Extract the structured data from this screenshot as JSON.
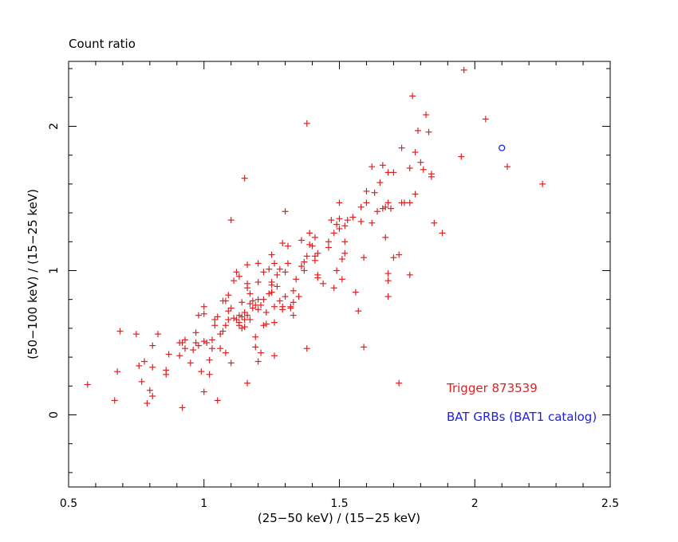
{
  "chart_data": {
    "type": "scatter",
    "title": "Count ratio",
    "xlabel": "(25−50 keV) / (15−25 keV)",
    "ylabel": "(50−100 keV) / (15−25 keV)",
    "xlim": [
      0.5,
      2.5
    ],
    "ylim": [
      -0.5,
      2.45
    ],
    "x_ticks": [
      0.5,
      1,
      1.5,
      2,
      2.5
    ],
    "x_tick_labels": [
      "0.5",
      "1",
      "1.5",
      "2",
      "2.5"
    ],
    "y_ticks": [
      0,
      1,
      2
    ],
    "y_tick_labels": [
      "0",
      "1",
      "2"
    ],
    "grid": false,
    "legend_position": "bottom-right",
    "series": [
      {
        "name": "Trigger 873539",
        "marker": "plus",
        "color": "#e02020",
        "points": [
          [
            0.57,
            0.21
          ],
          [
            0.67,
            0.1
          ],
          [
            0.68,
            0.3
          ],
          [
            0.69,
            0.58
          ],
          [
            0.75,
            0.56
          ],
          [
            0.76,
            0.34
          ],
          [
            0.77,
            0.23
          ],
          [
            0.78,
            0.37
          ],
          [
            0.79,
            0.08
          ],
          [
            0.8,
            0.17
          ],
          [
            0.81,
            0.13
          ],
          [
            0.81,
            0.33
          ],
          [
            0.81,
            0.48
          ],
          [
            0.83,
            0.56
          ],
          [
            0.86,
            0.28
          ],
          [
            0.86,
            0.31
          ],
          [
            0.87,
            0.42
          ],
          [
            0.91,
            0.5
          ],
          [
            0.91,
            0.41
          ],
          [
            0.92,
            0.05
          ],
          [
            0.92,
            0.5
          ],
          [
            0.93,
            0.52
          ],
          [
            0.93,
            0.46
          ],
          [
            0.95,
            0.36
          ],
          [
            0.96,
            0.45
          ],
          [
            0.97,
            0.57
          ],
          [
            0.97,
            0.5
          ],
          [
            0.98,
            0.69
          ],
          [
            0.98,
            0.48
          ],
          [
            0.99,
            0.3
          ],
          [
            1.0,
            0.7
          ],
          [
            1.0,
            0.75
          ],
          [
            1.0,
            0.51
          ],
          [
            1.0,
            0.16
          ],
          [
            1.01,
            0.5
          ],
          [
            1.02,
            0.38
          ],
          [
            1.02,
            0.28
          ],
          [
            1.03,
            0.46
          ],
          [
            1.03,
            0.52
          ],
          [
            1.04,
            0.66
          ],
          [
            1.04,
            0.62
          ],
          [
            1.05,
            0.68
          ],
          [
            1.05,
            0.1
          ],
          [
            1.06,
            0.56
          ],
          [
            1.06,
            0.46
          ],
          [
            1.07,
            0.58
          ],
          [
            1.07,
            0.79
          ],
          [
            1.08,
            0.62
          ],
          [
            1.08,
            0.79
          ],
          [
            1.08,
            0.43
          ],
          [
            1.09,
            0.66
          ],
          [
            1.09,
            0.83
          ],
          [
            1.09,
            0.72
          ],
          [
            1.1,
            0.74
          ],
          [
            1.1,
            0.36
          ],
          [
            1.1,
            1.35
          ],
          [
            1.11,
            0.67
          ],
          [
            1.11,
            0.93
          ],
          [
            1.12,
            0.99
          ],
          [
            1.12,
            0.66
          ],
          [
            1.13,
            0.64
          ],
          [
            1.13,
            0.69
          ],
          [
            1.13,
            0.62
          ],
          [
            1.14,
            0.78
          ],
          [
            1.14,
            0.68
          ],
          [
            1.14,
            0.6
          ],
          [
            1.15,
            1.64
          ],
          [
            1.15,
            0.71
          ],
          [
            1.15,
            0.66
          ],
          [
            1.15,
            0.61
          ],
          [
            1.16,
            1.04
          ],
          [
            1.16,
            0.91
          ],
          [
            1.16,
            0.88
          ],
          [
            1.16,
            0.69
          ],
          [
            1.16,
            0.22
          ],
          [
            1.17,
            0.84
          ],
          [
            1.17,
            0.66
          ],
          [
            1.17,
            0.77
          ],
          [
            1.18,
            0.79
          ],
          [
            1.18,
            0.74
          ],
          [
            1.19,
            0.54
          ],
          [
            1.19,
            0.47
          ],
          [
            1.19,
            0.76
          ],
          [
            1.2,
            0.8
          ],
          [
            1.2,
            0.73
          ],
          [
            1.2,
            0.92
          ],
          [
            1.2,
            1.05
          ],
          [
            1.2,
            0.37
          ],
          [
            1.21,
            0.43
          ],
          [
            1.21,
            0.76
          ],
          [
            1.22,
            0.8
          ],
          [
            1.22,
            0.62
          ],
          [
            1.22,
            0.99
          ],
          [
            1.23,
            0.71
          ],
          [
            1.23,
            0.63
          ],
          [
            1.24,
            0.84
          ],
          [
            1.24,
            1.01
          ],
          [
            1.25,
            0.9
          ],
          [
            1.25,
            1.11
          ],
          [
            1.25,
            0.92
          ],
          [
            1.25,
            0.85
          ],
          [
            1.26,
            0.64
          ],
          [
            1.26,
            0.41
          ],
          [
            1.26,
            0.75
          ],
          [
            1.26,
            1.05
          ],
          [
            1.27,
            0.97
          ],
          [
            1.27,
            0.89
          ],
          [
            1.28,
            0.79
          ],
          [
            1.28,
            1.01
          ],
          [
            1.29,
            0.75
          ],
          [
            1.29,
            0.73
          ],
          [
            1.29,
            1.19
          ],
          [
            1.3,
            1.41
          ],
          [
            1.3,
            0.82
          ],
          [
            1.3,
            0.99
          ],
          [
            1.31,
            1.05
          ],
          [
            1.31,
            1.17
          ],
          [
            1.32,
            0.74
          ],
          [
            1.32,
            0.75
          ],
          [
            1.33,
            0.69
          ],
          [
            1.33,
            0.86
          ],
          [
            1.33,
            0.78
          ],
          [
            1.34,
            0.94
          ],
          [
            1.35,
            0.82
          ],
          [
            1.36,
            1.03
          ],
          [
            1.36,
            1.21
          ],
          [
            1.37,
            1.06
          ],
          [
            1.37,
            1.0
          ],
          [
            1.38,
            2.02
          ],
          [
            1.38,
            0.46
          ],
          [
            1.38,
            1.1
          ],
          [
            1.39,
            1.26
          ],
          [
            1.39,
            1.18
          ],
          [
            1.4,
            1.17
          ],
          [
            1.41,
            1.07
          ],
          [
            1.41,
            1.23
          ],
          [
            1.41,
            1.1
          ],
          [
            1.42,
            0.97
          ],
          [
            1.42,
            0.95
          ],
          [
            1.42,
            1.12
          ],
          [
            1.46,
            1.16
          ],
          [
            1.46,
            1.2
          ],
          [
            1.47,
            1.35
          ],
          [
            1.48,
            0.88
          ],
          [
            1.48,
            1.26
          ],
          [
            1.49,
            1.32
          ],
          [
            1.49,
            1.0
          ],
          [
            1.5,
            1.47
          ],
          [
            1.5,
            1.36
          ],
          [
            1.5,
            1.29
          ],
          [
            1.51,
            1.08
          ],
          [
            1.51,
            0.94
          ],
          [
            1.52,
            1.31
          ],
          [
            1.52,
            1.2
          ],
          [
            1.52,
            1.12
          ],
          [
            1.53,
            1.35
          ],
          [
            1.55,
            1.37
          ],
          [
            1.56,
            0.85
          ],
          [
            1.57,
            0.72
          ],
          [
            1.58,
            1.44
          ],
          [
            1.58,
            1.34
          ],
          [
            1.59,
            1.09
          ],
          [
            1.59,
            0.47
          ],
          [
            1.6,
            1.55
          ],
          [
            1.6,
            1.47
          ],
          [
            1.62,
            1.72
          ],
          [
            1.62,
            1.33
          ],
          [
            1.63,
            1.54
          ],
          [
            1.64,
            1.41
          ],
          [
            1.65,
            1.61
          ],
          [
            1.66,
            1.43
          ],
          [
            1.66,
            1.73
          ],
          [
            1.67,
            1.23
          ],
          [
            1.67,
            1.44
          ],
          [
            1.68,
            1.68
          ],
          [
            1.68,
            1.47
          ],
          [
            1.68,
            0.93
          ],
          [
            1.68,
            0.82
          ],
          [
            1.68,
            0.98
          ],
          [
            1.69,
            1.43
          ],
          [
            1.7,
            1.68
          ],
          [
            1.7,
            1.09
          ],
          [
            1.72,
            1.11
          ],
          [
            1.72,
            0.22
          ],
          [
            1.73,
            1.85
          ],
          [
            1.73,
            1.47
          ],
          [
            1.74,
            1.47
          ],
          [
            1.76,
            1.71
          ],
          [
            1.76,
            0.97
          ],
          [
            1.77,
            2.21
          ],
          [
            1.78,
            1.53
          ],
          [
            1.78,
            1.82
          ],
          [
            1.79,
            1.97
          ],
          [
            1.8,
            1.75
          ],
          [
            1.81,
            1.7
          ],
          [
            1.82,
            2.08
          ],
          [
            1.83,
            1.96
          ],
          [
            1.84,
            1.65
          ],
          [
            1.84,
            1.67
          ],
          [
            1.85,
            1.33
          ],
          [
            1.88,
            1.26
          ],
          [
            1.95,
            1.79
          ],
          [
            1.96,
            2.39
          ],
          [
            2.04,
            2.05
          ],
          [
            2.12,
            1.72
          ],
          [
            2.25,
            1.6
          ],
          [
            1.76,
            1.47
          ],
          [
            1.25,
            0.85
          ],
          [
            1.44,
            0.91
          ],
          [
            1.13,
            0.96
          ]
        ]
      },
      {
        "name": "BAT GRBs (BAT1 catalog)",
        "marker": "circle",
        "color": "#2020e0",
        "points": [
          [
            2.1,
            1.85
          ]
        ]
      }
    ],
    "legend": [
      {
        "label": "Trigger 873539",
        "color": "#e02020"
      },
      {
        "label": "BAT GRBs (BAT1 catalog)",
        "color": "#2020e0"
      }
    ]
  }
}
